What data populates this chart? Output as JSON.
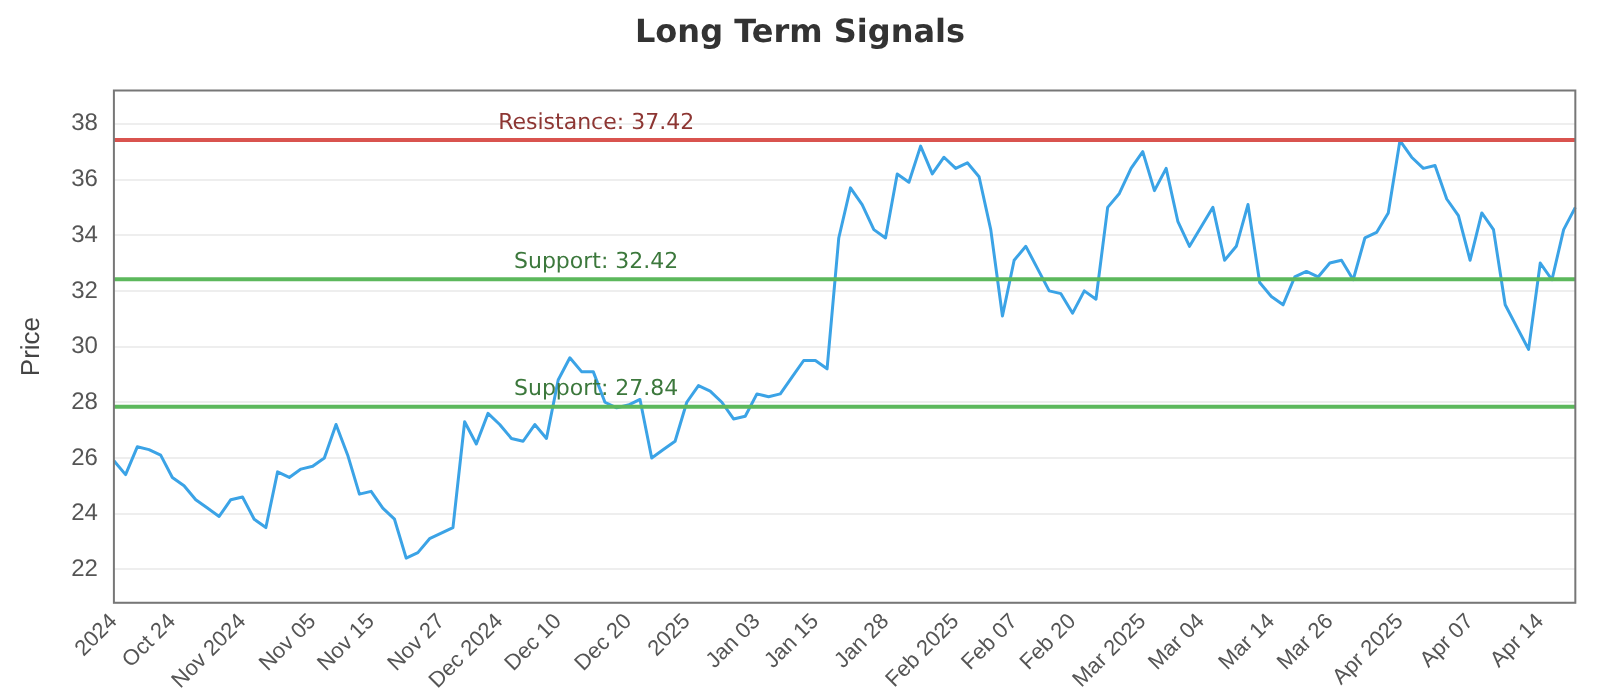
{
  "chart_data": {
    "type": "line",
    "title": "Long Term Signals",
    "ylabel": "Price",
    "categories": [
      "2024",
      null,
      null,
      null,
      null,
      "Oct 24",
      null,
      null,
      null,
      null,
      null,
      "Nov 2024",
      null,
      null,
      null,
      null,
      null,
      "Nov 05",
      null,
      null,
      null,
      null,
      "Nov 15",
      null,
      null,
      null,
      null,
      null,
      "Nov 27",
      null,
      null,
      null,
      null,
      "Dec 2024",
      null,
      null,
      null,
      null,
      "Dec 10",
      null,
      null,
      null,
      null,
      null,
      "Dec 20",
      null,
      null,
      null,
      null,
      "2025",
      null,
      null,
      null,
      null,
      null,
      "Jan 03",
      null,
      null,
      null,
      null,
      "Jan 15",
      null,
      null,
      null,
      null,
      null,
      "Jan 28",
      null,
      null,
      null,
      null,
      null,
      "Feb 2025",
      null,
      null,
      null,
      null,
      "Feb 07",
      null,
      null,
      null,
      null,
      "Feb 20",
      null,
      null,
      null,
      null,
      null,
      "Mar 2025",
      null,
      null,
      null,
      null,
      "Mar 04",
      null,
      null,
      null,
      null,
      null,
      "Mar 14",
      null,
      null,
      null,
      null,
      "Mar 26",
      null,
      null,
      null,
      null,
      null,
      "Apr 2025",
      null,
      null,
      null,
      null,
      null,
      "Apr 07",
      null,
      null,
      null,
      null,
      null,
      "Apr 14",
      null,
      null,
      null
    ],
    "series": [
      {
        "color": "#3ba3e6",
        "values": [
          25.9,
          25.4,
          26.4,
          26.3,
          26.1,
          25.3,
          25.0,
          24.5,
          24.2,
          23.9,
          24.5,
          24.6,
          23.8,
          23.5,
          25.5,
          25.3,
          25.6,
          25.7,
          26.0,
          27.2,
          26.1,
          24.7,
          24.8,
          24.2,
          23.8,
          22.4,
          22.6,
          23.1,
          23.3,
          23.5,
          27.3,
          26.5,
          27.6,
          27.2,
          26.7,
          26.6,
          27.2,
          26.7,
          28.8,
          29.6,
          29.1,
          29.1,
          28.0,
          27.8,
          27.9,
          28.1,
          26.0,
          26.3,
          26.6,
          28.0,
          28.6,
          28.4,
          28.0,
          27.4,
          27.5,
          28.3,
          28.2,
          28.3,
          28.9,
          29.5,
          29.5,
          29.2,
          33.9,
          35.7,
          35.1,
          34.2,
          33.9,
          36.2,
          35.9,
          37.2,
          36.2,
          36.8,
          36.4,
          36.6,
          36.1,
          34.2,
          31.1,
          33.1,
          33.6,
          32.8,
          32.0,
          31.9,
          31.2,
          32.0,
          31.7,
          35.0,
          35.5,
          36.4,
          37.0,
          35.6,
          36.4,
          34.5,
          33.6,
          34.3,
          35.0,
          33.1,
          33.6,
          35.1,
          32.3,
          31.8,
          31.5,
          32.5,
          32.7,
          32.5,
          33.0,
          33.1,
          32.4,
          33.9,
          34.1,
          34.8,
          37.4,
          36.8,
          36.4,
          36.5,
          35.3,
          34.7,
          33.1,
          34.8,
          34.2,
          31.5,
          30.7,
          29.9,
          33.0,
          32.4,
          34.2,
          35.0
        ]
      }
    ],
    "ylim": [
      20.8,
      39.2
    ],
    "yticks": [
      22,
      24,
      26,
      28,
      30,
      32,
      34,
      36,
      38
    ],
    "grid": "y",
    "legend": false,
    "marker": "none",
    "line_style": "solid",
    "ref_lines": [
      {
        "axis": "y",
        "value": 37.42,
        "label": "Resistance: 37.42",
        "color": "#d9534f"
      },
      {
        "axis": "y",
        "value": 32.42,
        "label": "Support: 32.42",
        "color": "#5cb85c"
      },
      {
        "axis": "y",
        "value": 27.84,
        "label": "Support: 27.84",
        "color": "#5cb85c"
      }
    ]
  }
}
